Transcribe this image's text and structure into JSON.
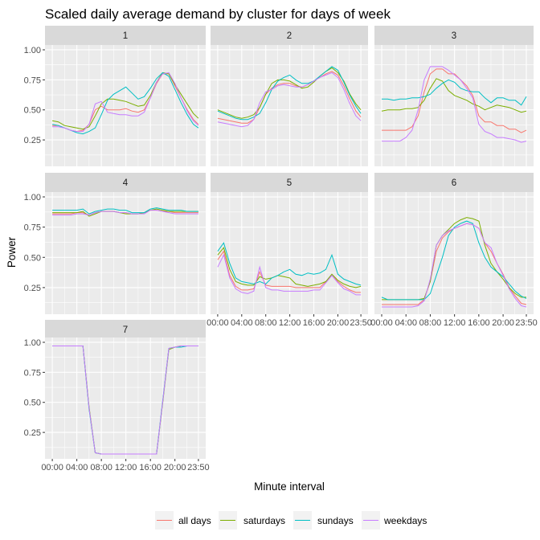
{
  "chart_data": {
    "type": "line",
    "title": "Scaled daily average demand by cluster for days of week",
    "xlabel": "Minute interval",
    "ylabel": "Power",
    "ylim": [
      0.03,
      1.04
    ],
    "y_ticks": [
      0.25,
      0.5,
      0.75,
      1.0
    ],
    "y_tick_labels": [
      "0.25",
      "0.50",
      "0.75",
      "1.00"
    ],
    "x_ticks": [
      0,
      4,
      8,
      12,
      16,
      20,
      23.83
    ],
    "x_tick_labels": [
      "00:00",
      "04:00",
      "08:00",
      "12:00",
      "16:00",
      "20:00",
      "23:50"
    ],
    "x_hours": [
      0,
      1,
      2,
      3,
      4,
      5,
      6,
      7,
      8,
      9,
      10,
      11,
      12,
      13,
      14,
      15,
      16,
      17,
      18,
      19,
      20,
      21,
      22,
      23,
      23.83
    ],
    "grid": true,
    "legend": {
      "position": "bottom",
      "entries": [
        "all days",
        "saturdays",
        "sundays",
        "weekdays"
      ]
    },
    "colors": {
      "all days": "#F8766D",
      "saturdays": "#7CAE00",
      "sundays": "#00BFC4",
      "weekdays": "#C77CFF"
    },
    "facets": [
      {
        "label": "1",
        "series": [
          {
            "name": "all days",
            "values": [
              0.37,
              0.37,
              0.35,
              0.33,
              0.32,
              0.33,
              0.38,
              0.5,
              0.53,
              0.5,
              0.5,
              0.5,
              0.51,
              0.49,
              0.48,
              0.5,
              0.6,
              0.72,
              0.8,
              0.8,
              0.7,
              0.6,
              0.5,
              0.42,
              0.38
            ]
          },
          {
            "name": "saturdays",
            "values": [
              0.41,
              0.4,
              0.37,
              0.36,
              0.35,
              0.34,
              0.36,
              0.45,
              0.55,
              0.59,
              0.59,
              0.58,
              0.57,
              0.55,
              0.53,
              0.54,
              0.62,
              0.73,
              0.81,
              0.8,
              0.71,
              0.63,
              0.55,
              0.47,
              0.43
            ]
          },
          {
            "name": "sundays",
            "values": [
              0.38,
              0.37,
              0.35,
              0.33,
              0.31,
              0.3,
              0.32,
              0.35,
              0.46,
              0.58,
              0.63,
              0.66,
              0.69,
              0.64,
              0.59,
              0.61,
              0.68,
              0.76,
              0.81,
              0.78,
              0.67,
              0.56,
              0.46,
              0.38,
              0.35
            ]
          },
          {
            "name": "weekdays",
            "values": [
              0.36,
              0.36,
              0.35,
              0.33,
              0.32,
              0.32,
              0.38,
              0.55,
              0.57,
              0.48,
              0.47,
              0.46,
              0.46,
              0.45,
              0.45,
              0.48,
              0.6,
              0.73,
              0.8,
              0.81,
              0.72,
              0.6,
              0.49,
              0.41,
              0.37
            ]
          }
        ]
      },
      {
        "label": "2",
        "series": [
          {
            "name": "all days",
            "values": [
              0.43,
              0.42,
              0.41,
              0.4,
              0.39,
              0.39,
              0.42,
              0.52,
              0.63,
              0.68,
              0.71,
              0.72,
              0.72,
              0.7,
              0.69,
              0.71,
              0.74,
              0.77,
              0.8,
              0.82,
              0.79,
              0.7,
              0.59,
              0.49,
              0.44
            ]
          },
          {
            "name": "saturdays",
            "values": [
              0.5,
              0.48,
              0.46,
              0.44,
              0.43,
              0.44,
              0.46,
              0.52,
              0.63,
              0.72,
              0.75,
              0.75,
              0.74,
              0.71,
              0.68,
              0.69,
              0.73,
              0.78,
              0.82,
              0.85,
              0.81,
              0.74,
              0.63,
              0.55,
              0.5
            ]
          },
          {
            "name": "sundays",
            "values": [
              0.49,
              0.47,
              0.45,
              0.43,
              0.42,
              0.42,
              0.44,
              0.47,
              0.56,
              0.67,
              0.74,
              0.77,
              0.79,
              0.75,
              0.72,
              0.72,
              0.74,
              0.78,
              0.82,
              0.86,
              0.83,
              0.73,
              0.62,
              0.53,
              0.47
            ]
          },
          {
            "name": "weekdays",
            "values": [
              0.4,
              0.39,
              0.38,
              0.37,
              0.36,
              0.37,
              0.42,
              0.56,
              0.65,
              0.67,
              0.7,
              0.71,
              0.7,
              0.69,
              0.69,
              0.71,
              0.74,
              0.77,
              0.79,
              0.81,
              0.77,
              0.67,
              0.55,
              0.45,
              0.41
            ]
          }
        ]
      },
      {
        "label": "3",
        "series": [
          {
            "name": "all days",
            "values": [
              0.33,
              0.33,
              0.33,
              0.33,
              0.33,
              0.36,
              0.45,
              0.65,
              0.8,
              0.84,
              0.84,
              0.8,
              0.8,
              0.75,
              0.7,
              0.62,
              0.45,
              0.4,
              0.4,
              0.37,
              0.37,
              0.34,
              0.34,
              0.31,
              0.33
            ]
          },
          {
            "name": "saturdays",
            "values": [
              0.49,
              0.5,
              0.5,
              0.5,
              0.51,
              0.51,
              0.52,
              0.58,
              0.68,
              0.76,
              0.74,
              0.66,
              0.62,
              0.6,
              0.58,
              0.55,
              0.53,
              0.5,
              0.52,
              0.54,
              0.53,
              0.52,
              0.5,
              0.48,
              0.49
            ]
          },
          {
            "name": "sundays",
            "values": [
              0.59,
              0.59,
              0.58,
              0.59,
              0.59,
              0.6,
              0.6,
              0.61,
              0.63,
              0.68,
              0.72,
              0.75,
              0.73,
              0.68,
              0.66,
              0.65,
              0.65,
              0.6,
              0.56,
              0.6,
              0.6,
              0.58,
              0.58,
              0.54,
              0.61
            ]
          },
          {
            "name": "weekdays",
            "values": [
              0.24,
              0.24,
              0.24,
              0.24,
              0.27,
              0.33,
              0.5,
              0.75,
              0.86,
              0.86,
              0.86,
              0.83,
              0.79,
              0.75,
              0.68,
              0.6,
              0.38,
              0.32,
              0.3,
              0.27,
              0.27,
              0.26,
              0.25,
              0.23,
              0.24
            ]
          }
        ]
      },
      {
        "label": "4",
        "series": [
          {
            "name": "all days",
            "values": [
              0.86,
              0.86,
              0.86,
              0.86,
              0.87,
              0.87,
              0.85,
              0.87,
              0.88,
              0.88,
              0.88,
              0.87,
              0.87,
              0.86,
              0.86,
              0.87,
              0.89,
              0.89,
              0.88,
              0.88,
              0.87,
              0.87,
              0.87,
              0.87,
              0.87
            ]
          },
          {
            "name": "saturdays",
            "values": [
              0.87,
              0.87,
              0.87,
              0.87,
              0.87,
              0.88,
              0.84,
              0.86,
              0.88,
              0.88,
              0.88,
              0.87,
              0.86,
              0.86,
              0.86,
              0.87,
              0.89,
              0.9,
              0.89,
              0.88,
              0.88,
              0.88,
              0.88,
              0.88,
              0.88
            ]
          },
          {
            "name": "sundays",
            "values": [
              0.89,
              0.89,
              0.89,
              0.89,
              0.89,
              0.9,
              0.86,
              0.88,
              0.89,
              0.9,
              0.9,
              0.89,
              0.89,
              0.87,
              0.87,
              0.87,
              0.9,
              0.91,
              0.9,
              0.89,
              0.89,
              0.89,
              0.88,
              0.88,
              0.88
            ]
          },
          {
            "name": "weekdays",
            "values": [
              0.85,
              0.85,
              0.85,
              0.85,
              0.86,
              0.86,
              0.85,
              0.87,
              0.88,
              0.88,
              0.88,
              0.87,
              0.87,
              0.86,
              0.86,
              0.86,
              0.89,
              0.89,
              0.88,
              0.87,
              0.86,
              0.86,
              0.86,
              0.86,
              0.86
            ]
          }
        ]
      },
      {
        "label": "5",
        "series": [
          {
            "name": "all days",
            "values": [
              0.48,
              0.55,
              0.35,
              0.26,
              0.23,
              0.23,
              0.24,
              0.38,
              0.27,
              0.26,
              0.26,
              0.26,
              0.26,
              0.25,
              0.25,
              0.25,
              0.25,
              0.25,
              0.3,
              0.35,
              0.3,
              0.26,
              0.23,
              0.21,
              0.21
            ]
          },
          {
            "name": "saturdays",
            "values": [
              0.52,
              0.58,
              0.4,
              0.3,
              0.28,
              0.27,
              0.27,
              0.34,
              0.32,
              0.33,
              0.35,
              0.34,
              0.33,
              0.28,
              0.27,
              0.26,
              0.27,
              0.28,
              0.3,
              0.36,
              0.31,
              0.28,
              0.26,
              0.25,
              0.26
            ]
          },
          {
            "name": "sundays",
            "values": [
              0.55,
              0.62,
              0.45,
              0.33,
              0.3,
              0.29,
              0.28,
              0.3,
              0.28,
              0.33,
              0.35,
              0.38,
              0.4,
              0.36,
              0.35,
              0.37,
              0.36,
              0.37,
              0.4,
              0.52,
              0.36,
              0.32,
              0.3,
              0.28,
              0.27
            ]
          },
          {
            "name": "weekdays",
            "values": [
              0.42,
              0.52,
              0.33,
              0.24,
              0.21,
              0.2,
              0.22,
              0.42,
              0.25,
              0.23,
              0.23,
              0.22,
              0.22,
              0.22,
              0.22,
              0.22,
              0.23,
              0.23,
              0.29,
              0.35,
              0.29,
              0.24,
              0.22,
              0.19,
              0.19
            ]
          }
        ]
      },
      {
        "label": "6",
        "series": [
          {
            "name": "all days",
            "values": [
              0.11,
              0.11,
              0.11,
              0.11,
              0.11,
              0.11,
              0.11,
              0.15,
              0.3,
              0.55,
              0.66,
              0.71,
              0.74,
              0.76,
              0.78,
              0.77,
              0.74,
              0.62,
              0.55,
              0.45,
              0.36,
              0.25,
              0.18,
              0.12,
              0.11
            ]
          },
          {
            "name": "saturdays",
            "values": [
              0.15,
              0.15,
              0.15,
              0.15,
              0.15,
              0.15,
              0.15,
              0.16,
              0.3,
              0.6,
              0.68,
              0.73,
              0.78,
              0.81,
              0.83,
              0.82,
              0.8,
              0.6,
              0.45,
              0.38,
              0.32,
              0.25,
              0.2,
              0.17,
              0.17
            ]
          },
          {
            "name": "sundays",
            "values": [
              0.17,
              0.15,
              0.15,
              0.15,
              0.15,
              0.15,
              0.15,
              0.15,
              0.2,
              0.35,
              0.5,
              0.68,
              0.75,
              0.78,
              0.8,
              0.78,
              0.62,
              0.5,
              0.42,
              0.38,
              0.34,
              0.28,
              0.22,
              0.18,
              0.16
            ]
          },
          {
            "name": "weekdays",
            "values": [
              0.09,
              0.09,
              0.09,
              0.09,
              0.09,
              0.09,
              0.1,
              0.14,
              0.32,
              0.6,
              0.68,
              0.72,
              0.74,
              0.76,
              0.78,
              0.77,
              0.74,
              0.62,
              0.58,
              0.45,
              0.35,
              0.24,
              0.16,
              0.1,
              0.09
            ]
          }
        ]
      },
      {
        "label": "7",
        "series": [
          {
            "name": "all days",
            "values": [
              0.97,
              0.97,
              0.97,
              0.97,
              0.97,
              0.97,
              0.45,
              0.08,
              0.07,
              0.07,
              0.07,
              0.07,
              0.07,
              0.07,
              0.07,
              0.07,
              0.07,
              0.07,
              0.5,
              0.95,
              0.96,
              0.97,
              0.97,
              0.97,
              0.97
            ]
          },
          {
            "name": "saturdays",
            "values": [
              0.97,
              0.97,
              0.97,
              0.97,
              0.97,
              0.97,
              0.46,
              0.08,
              0.07,
              0.07,
              0.07,
              0.07,
              0.07,
              0.07,
              0.07,
              0.07,
              0.07,
              0.07,
              0.49,
              0.94,
              0.96,
              0.97,
              0.97,
              0.97,
              0.97
            ]
          },
          {
            "name": "sundays",
            "values": [
              0.97,
              0.97,
              0.97,
              0.97,
              0.97,
              0.97,
              0.44,
              0.08,
              0.07,
              0.07,
              0.07,
              0.07,
              0.07,
              0.07,
              0.07,
              0.07,
              0.07,
              0.07,
              0.51,
              0.95,
              0.96,
              0.96,
              0.97,
              0.97,
              0.97
            ]
          },
          {
            "name": "weekdays",
            "values": [
              0.97,
              0.97,
              0.97,
              0.97,
              0.97,
              0.97,
              0.45,
              0.08,
              0.07,
              0.07,
              0.07,
              0.07,
              0.07,
              0.07,
              0.07,
              0.07,
              0.07,
              0.07,
              0.5,
              0.95,
              0.96,
              0.97,
              0.97,
              0.97,
              0.97
            ]
          }
        ]
      }
    ]
  }
}
